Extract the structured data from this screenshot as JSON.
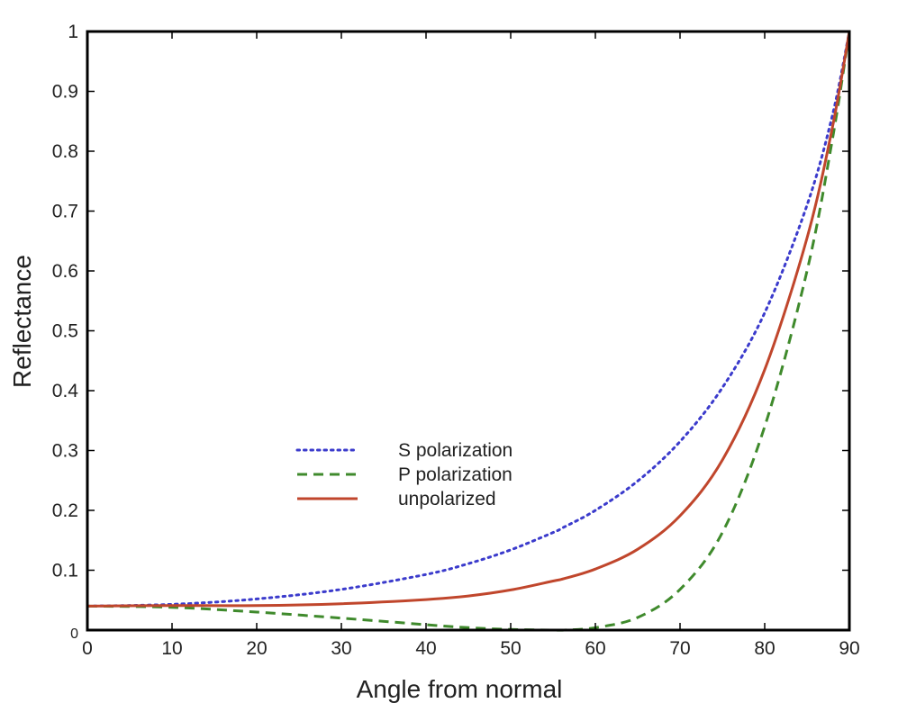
{
  "chart_data": {
    "type": "line",
    "title": "",
    "xlabel": "Angle from normal",
    "ylabel": "Reflectance",
    "xlim": [
      0,
      90
    ],
    "ylim": [
      0,
      1
    ],
    "xticks": [
      0,
      10,
      20,
      30,
      40,
      50,
      60,
      70,
      80,
      90
    ],
    "yticks": [
      0,
      0.1,
      0.2,
      0.3,
      0.4,
      0.5,
      0.6,
      0.7,
      0.8,
      0.9,
      1
    ],
    "x_tick_labels": [
      "0",
      "10",
      "20",
      "30",
      "40",
      "50",
      "60",
      "70",
      "80",
      "90"
    ],
    "y_tick_labels": [
      "0",
      "0.1",
      "0.2",
      "0.3",
      "0.4",
      "0.5",
      "0.6",
      "0.7",
      "0.8",
      "0.9",
      "1"
    ],
    "grid": false,
    "legend_position": "center-left",
    "x": [
      0,
      10,
      20,
      30,
      40,
      45,
      50,
      55,
      56.3,
      60,
      65,
      70,
      75,
      80,
      85,
      88,
      90
    ],
    "series": [
      {
        "name": "S polarization",
        "style": "dotted",
        "color": "#3b3bcc",
        "values": [
          0.04,
          0.043,
          0.052,
          0.068,
          0.093,
          0.111,
          0.134,
          0.163,
          0.172,
          0.2,
          0.249,
          0.315,
          0.405,
          0.53,
          0.71,
          0.86,
          1.0
        ]
      },
      {
        "name": "P polarization",
        "style": "dashed",
        "color": "#3f8a2c",
        "values": [
          0.04,
          0.038,
          0.03,
          0.02,
          0.009,
          0.004,
          0.001,
          0.0,
          0.0,
          0.004,
          0.021,
          0.068,
          0.163,
          0.34,
          0.6,
          0.82,
          1.0
        ]
      },
      {
        "name": "unpolarized",
        "style": "solid",
        "color": "#c0462c",
        "values": [
          0.04,
          0.041,
          0.041,
          0.044,
          0.051,
          0.057,
          0.067,
          0.082,
          0.086,
          0.102,
          0.135,
          0.191,
          0.284,
          0.435,
          0.655,
          0.84,
          1.0
        ]
      }
    ]
  }
}
